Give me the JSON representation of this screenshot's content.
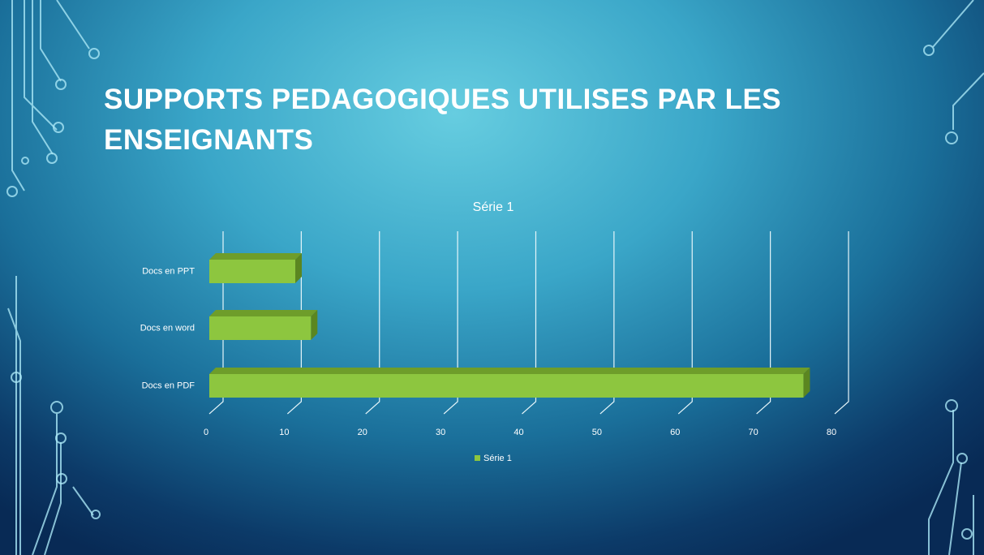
{
  "chart_data": {
    "type": "bar3d_horizontal",
    "title": "SUPPORTS PEDAGOGIQUES UTILISES PAR LES ENSEIGNANTS",
    "chart_title": "Série 1",
    "categories": [
      "Docs en PPT",
      "Docs en word",
      "Docs en PDF"
    ],
    "series": [
      {
        "name": "Série 1",
        "color": "#8dc63f",
        "values": [
          11,
          13,
          76
        ]
      }
    ],
    "xlim": [
      0,
      80
    ],
    "xticks": [
      0,
      10,
      20,
      30,
      40,
      50,
      60,
      70,
      80
    ],
    "grid": true,
    "legend": "bottom"
  }
}
